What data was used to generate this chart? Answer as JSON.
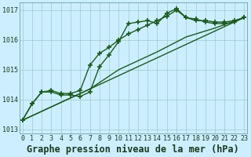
{
  "background_color": "#cceeff",
  "grid_color": "#99cccc",
  "line_color": "#1a5c1a",
  "title": "Graphe pression niveau de la mer (hPa)",
  "xlim_min": -0.3,
  "xlim_max": 23.3,
  "ylim_min": 1012.85,
  "ylim_max": 1017.25,
  "yticks": [
    1013,
    1014,
    1015,
    1016,
    1017
  ],
  "xticks": [
    0,
    1,
    2,
    3,
    4,
    5,
    6,
    7,
    8,
    9,
    10,
    11,
    12,
    13,
    14,
    15,
    16,
    17,
    18,
    19,
    20,
    21,
    22,
    23
  ],
  "series": [
    {
      "x": [
        0,
        1,
        2,
        3,
        4,
        5,
        6,
        7,
        8,
        9,
        10,
        11,
        12,
        13,
        14,
        15,
        16,
        17,
        18,
        19,
        20,
        21,
        22,
        23
      ],
      "y": [
        1013.3,
        1013.85,
        1014.25,
        1014.25,
        1014.15,
        1014.15,
        1014.1,
        1014.25,
        1015.1,
        1015.5,
        1015.95,
        1016.55,
        1016.6,
        1016.65,
        1016.55,
        1016.9,
        1017.05,
        1016.75,
        1016.7,
        1016.6,
        1016.55,
        1016.55,
        1016.6,
        1016.75
      ],
      "marker": "+",
      "markersize": 4,
      "linewidth": 1.0
    },
    {
      "x": [
        0,
        1,
        2,
        3,
        4,
        5,
        6,
        7,
        8,
        9,
        10,
        11,
        12,
        13,
        14,
        15,
        16,
        17,
        18,
        19,
        20,
        21,
        22,
        23
      ],
      "y": [
        1013.3,
        1013.85,
        1014.25,
        1014.3,
        1014.2,
        1014.2,
        1014.3,
        1015.15,
        1015.55,
        1015.75,
        1016.0,
        1016.2,
        1016.35,
        1016.5,
        1016.65,
        1016.8,
        1017.0,
        1016.75,
        1016.65,
        1016.65,
        1016.6,
        1016.6,
        1016.65,
        1016.75
      ],
      "marker": "+",
      "markersize": 4,
      "linewidth": 1.0
    },
    {
      "x": [
        0,
        23
      ],
      "y": [
        1013.3,
        1016.75
      ],
      "marker": "+",
      "markersize": 0,
      "linewidth": 1.0
    },
    {
      "x": [
        0,
        7,
        10,
        14,
        17,
        20,
        23
      ],
      "y": [
        1013.3,
        1014.35,
        1015.0,
        1015.6,
        1016.1,
        1016.4,
        1016.75
      ],
      "marker": "+",
      "markersize": 0,
      "linewidth": 1.0
    }
  ],
  "title_fontsize": 8.5,
  "tick_fontsize": 6.0
}
